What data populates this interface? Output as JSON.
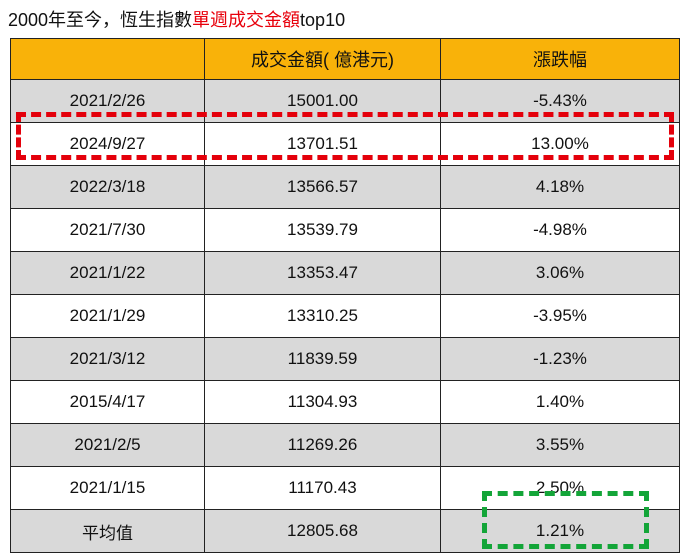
{
  "title": {
    "prefix": "2000年至今，恆生指數",
    "highlight": "單週成交金額",
    "suffix": "top10"
  },
  "colors": {
    "header_bg": "#f9b209",
    "shaded_row": "#d9d9d9",
    "highlight_red": "#e4000b",
    "highlight_green": "#13a538"
  },
  "table": {
    "headers": [
      "",
      "成交金額( 億港元)",
      "漲跌幅"
    ],
    "rows": [
      {
        "date": "2021/2/26",
        "amount": "15001.00",
        "change": "-5.43%"
      },
      {
        "date": "2024/9/27",
        "amount": "13701.51",
        "change": "13.00%"
      },
      {
        "date": "2022/3/18",
        "amount": "13566.57",
        "change": "4.18%"
      },
      {
        "date": "2021/7/30",
        "amount": "13539.79",
        "change": "-4.98%"
      },
      {
        "date": "2021/1/22",
        "amount": "13353.47",
        "change": "3.06%"
      },
      {
        "date": "2021/1/29",
        "amount": "13310.25",
        "change": "-3.95%"
      },
      {
        "date": "2021/3/12",
        "amount": "11839.59",
        "change": "-1.23%"
      },
      {
        "date": "2015/4/17",
        "amount": "11304.93",
        "change": "1.40%"
      },
      {
        "date": "2021/2/5",
        "amount": "11269.26",
        "change": "3.55%"
      },
      {
        "date": "2021/1/15",
        "amount": "11170.43",
        "change": "2.50%"
      },
      {
        "date": "平均值",
        "amount": "12805.68",
        "change": "1.21%"
      }
    ]
  }
}
